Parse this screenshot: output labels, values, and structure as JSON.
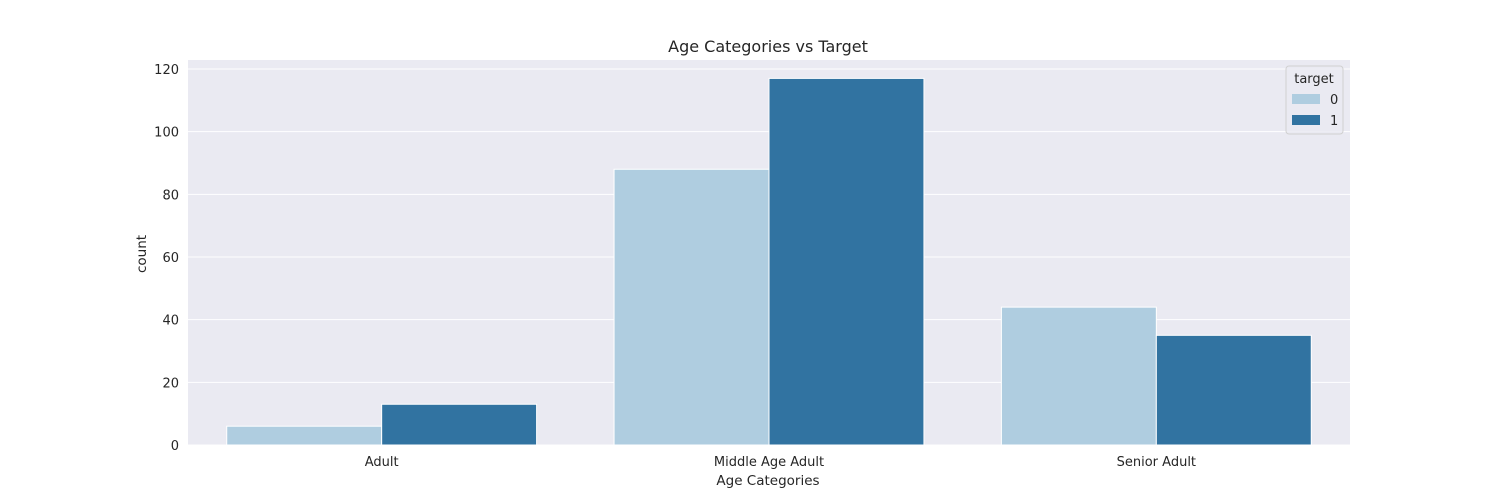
{
  "chart_data": {
    "type": "bar",
    "title": "Age Categories vs Target",
    "xlabel": "Age Categories",
    "ylabel": "count",
    "categories": [
      "Adult",
      "Middle Age Adult",
      "Senior Adult"
    ],
    "series": [
      {
        "name": "0",
        "values": [
          6,
          88,
          44
        ],
        "color": "#afcde0"
      },
      {
        "name": "1",
        "values": [
          13,
          117,
          35
        ],
        "color": "#3173a1"
      }
    ],
    "ylim": [
      0,
      120
    ],
    "yticks": [
      0,
      20,
      40,
      60,
      80,
      100,
      120
    ],
    "grid": true,
    "legend": {
      "title": "target",
      "placement": "top-right"
    },
    "colors": {
      "background": "#eaeaf2",
      "grid": "#ffffff"
    }
  }
}
